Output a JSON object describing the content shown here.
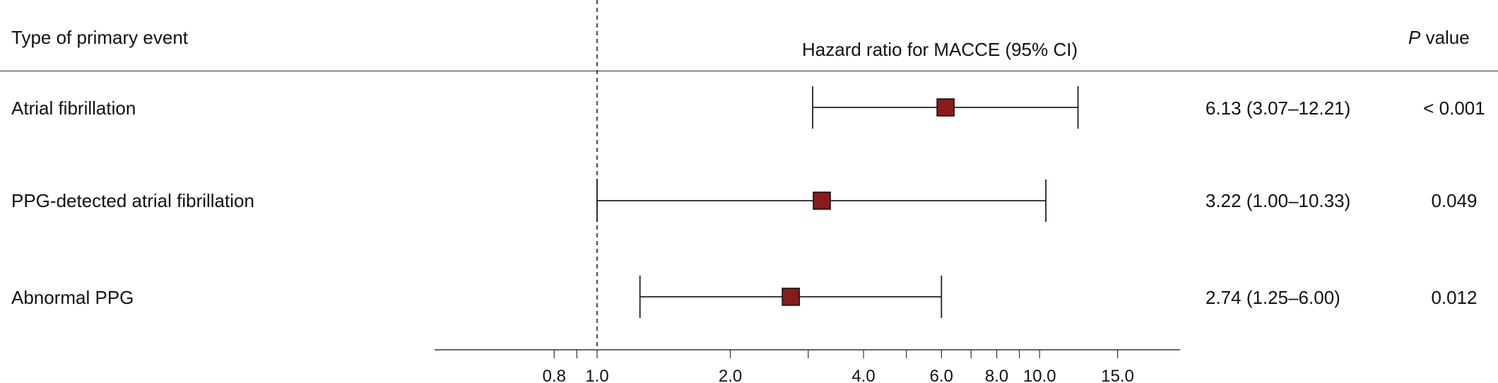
{
  "header": {
    "event_col": "Type of primary event",
    "hr_col": "Hazard ratio for MACCE (95% CI)",
    "p_italic": "P",
    "p_rest": " value"
  },
  "rows": [
    {
      "label": "Atrial fibrillation",
      "hr_text": "6.13 (3.07–12.21)",
      "p_text": "< 0.001"
    },
    {
      "label": "PPG-detected atrial fibrillation",
      "hr_text": "3.22 (1.00–10.33)",
      "p_text": "0.049"
    },
    {
      "label": "Abnormal PPG",
      "hr_text": "2.74 (1.25–6.00)",
      "p_text": "0.012"
    }
  ],
  "chart_data": {
    "type": "forest",
    "title": "Hazard ratio for MACCE (95% CI)",
    "x_scale": "log",
    "reference_line": 1.0,
    "xlim": [
      0.5,
      23
    ],
    "x_ticks": [
      0.8,
      0.9,
      1.0,
      2.0,
      3.0,
      4.0,
      5.0,
      6.0,
      7.0,
      8.0,
      9.0,
      10.0,
      15.0
    ],
    "x_tick_labels": [
      "0.8",
      "",
      "1.0",
      "2.0",
      "",
      "4.0",
      "",
      "6.0",
      "",
      "8.0",
      "",
      "10.0",
      "15.0"
    ],
    "series": [
      {
        "category": "Atrial fibrillation",
        "hr": 6.13,
        "lower": 3.07,
        "upper": 12.21
      },
      {
        "category": "PPG-detected atrial fibrillation",
        "hr": 3.22,
        "lower": 1.0,
        "upper": 10.33
      },
      {
        "category": "Abnormal PPG",
        "hr": 2.74,
        "lower": 1.25,
        "upper": 6.0
      }
    ],
    "marker_color": "#8b1a1a"
  }
}
